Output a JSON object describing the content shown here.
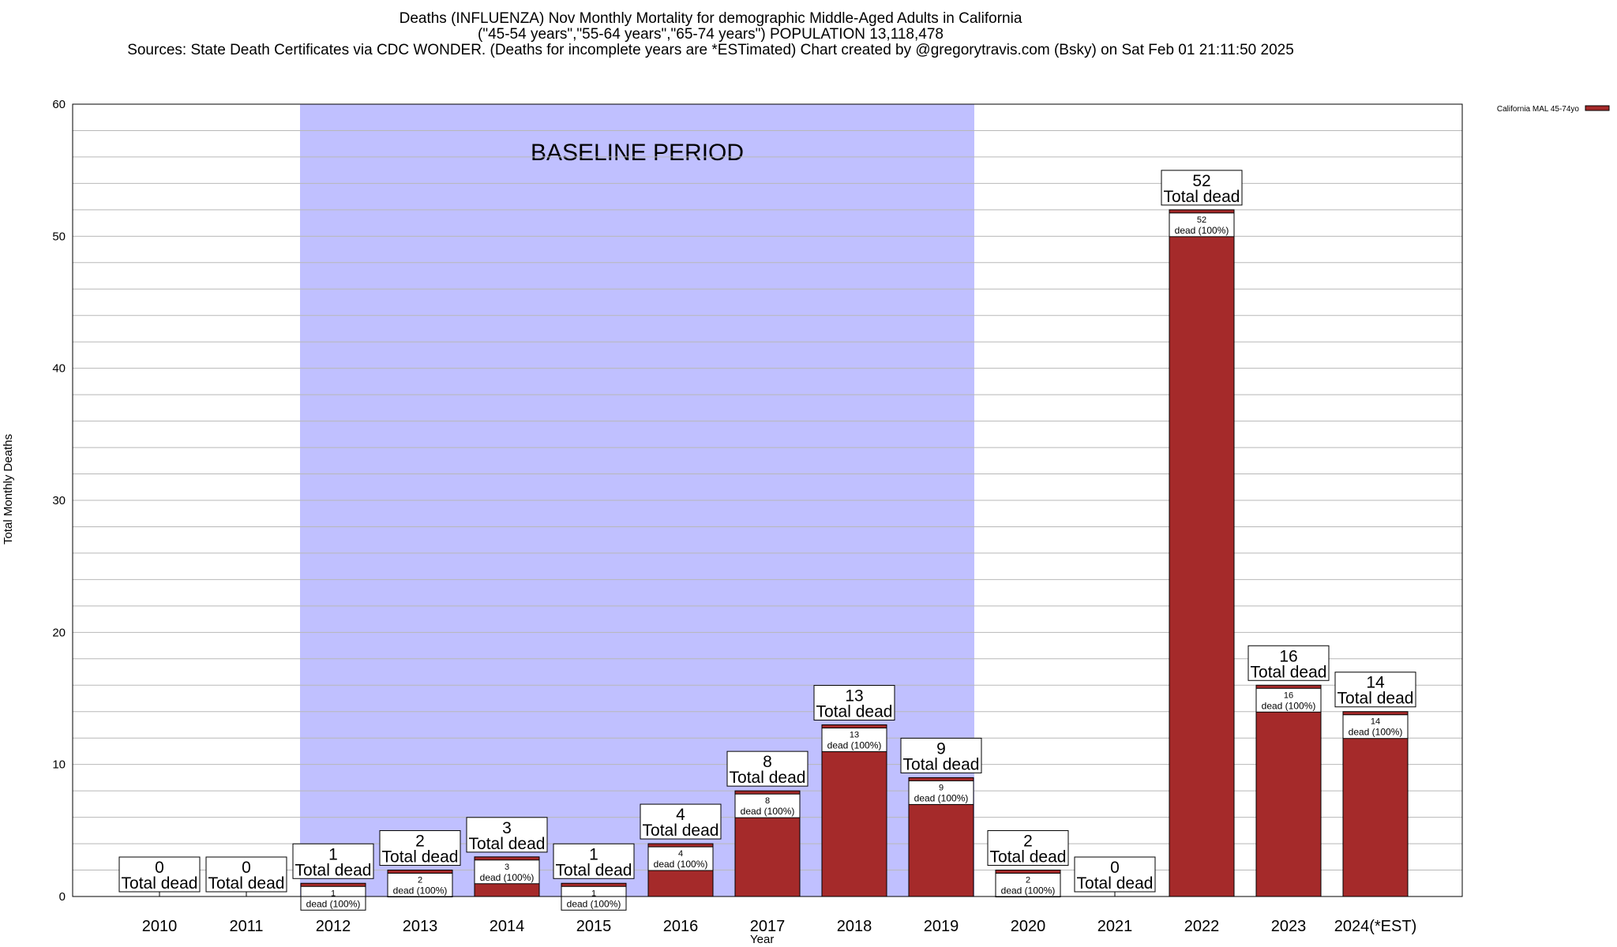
{
  "chart_title": {
    "line1": "Deaths (INFLUENZA) Nov Monthly Mortality for demographic Middle-Aged Adults in California",
    "line2": "(\"45-54 years\",\"55-64 years\",\"65-74 years\") POPULATION 13,118,478",
    "line3": "Sources: State Death Certificates via CDC WONDER. (Deaths for incomplete years are *ESTimated)              Chart created by @gregorytravis.com (Bsky) on Sat Feb 01 21:11:50 2025"
  },
  "chart_data": {
    "type": "bar",
    "xlabel": "Year",
    "ylabel": "Total Monthly Deaths",
    "ylim": [
      0,
      60
    ],
    "yticks": [
      0,
      10,
      20,
      30,
      40,
      50,
      60
    ],
    "grid": true,
    "legend_position": "top-right",
    "categories": [
      "2010",
      "2011",
      "2012",
      "2013",
      "2014",
      "2015",
      "2016",
      "2017",
      "2018",
      "2019",
      "2020",
      "2021",
      "2022",
      "2023",
      "2024(*EST)"
    ],
    "series": [
      {
        "name": "California MAL 45-74yo",
        "color": "#a52a2a",
        "values": [
          0,
          0,
          1,
          2,
          3,
          1,
          4,
          8,
          13,
          9,
          2,
          0,
          52,
          16,
          14
        ]
      }
    ],
    "total_label": "Total dead",
    "inner_label_suffix": "dead (100%)",
    "baseline_period": {
      "label": "BASELINE PERIOD",
      "start_category": "2012",
      "end_category": "2019",
      "color": "#c0c0ff"
    }
  }
}
